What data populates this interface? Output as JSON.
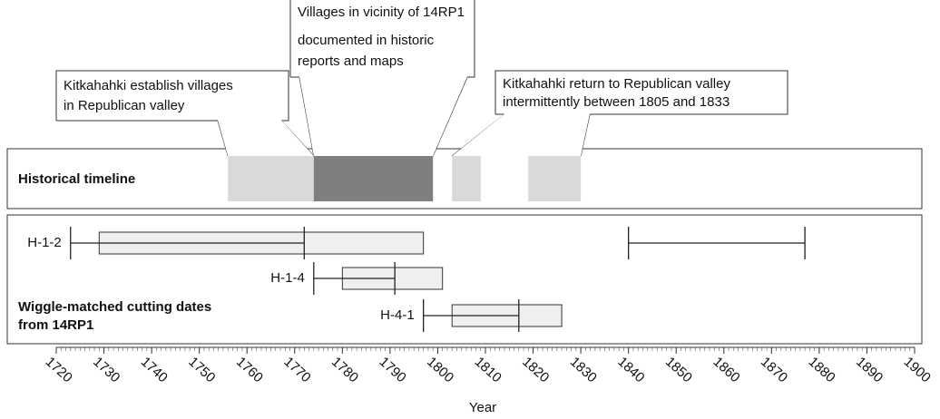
{
  "chart_data": {
    "type": "timeline",
    "xlabel": "Year",
    "xlim": [
      1720,
      1900
    ],
    "xticks": [
      1720,
      1730,
      1740,
      1750,
      1760,
      1770,
      1780,
      1790,
      1800,
      1810,
      1820,
      1830,
      1840,
      1850,
      1860,
      1870,
      1880,
      1890,
      1900
    ],
    "panels": [
      {
        "title": [
          "Historical timeline"
        ]
      },
      {
        "title": [
          "Wiggle-matched cutting dates",
          "from 14RP1"
        ]
      }
    ],
    "periods": [
      {
        "start": 1756,
        "end": 1774,
        "color": "#d9d9d9"
      },
      {
        "start": 1774,
        "end": 1799,
        "color": "#7f7f7f"
      },
      {
        "start": 1803,
        "end": 1809,
        "color": "#d9d9d9"
      },
      {
        "start": 1819,
        "end": 1830,
        "color": "#d9d9d9"
      }
    ],
    "annotations": [
      {
        "lines": [
          "Kitkahahki establish villages",
          "in Republican valley"
        ]
      },
      {
        "lines": [
          "Villages in vicinity of 14RP1",
          "documented in historic",
          "reports and maps"
        ]
      },
      {
        "lines": [
          "Kitkahahki return to Republican valley",
          "intermittently between 1805 and 1833"
        ]
      }
    ],
    "samples": [
      {
        "label": "H-1-2",
        "ranges": [
          [
            1723,
            1772
          ],
          [
            1840,
            1877
          ]
        ],
        "box": [
          1729,
          1797
        ]
      },
      {
        "label": "H-1-4",
        "ranges": [
          [
            1774,
            1791
          ]
        ],
        "box": [
          1780,
          1801
        ]
      },
      {
        "label": "H-4-1",
        "ranges": [
          [
            1797,
            1817
          ]
        ],
        "box": [
          1803,
          1826
        ]
      }
    ]
  }
}
